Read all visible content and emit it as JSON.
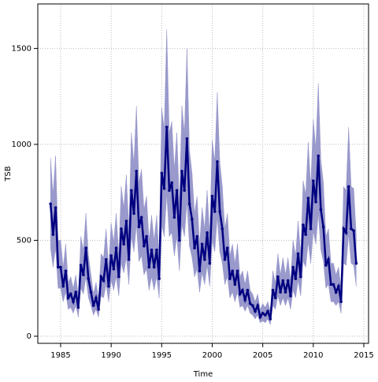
{
  "chart_data": {
    "type": "line",
    "x_label": "Time",
    "y_label": "TSB",
    "x": [
      1984,
      1984.25,
      1984.5,
      1984.75,
      1985,
      1985.25,
      1985.5,
      1985.75,
      1986,
      1986.25,
      1986.5,
      1986.75,
      1987,
      1987.25,
      1987.5,
      1987.75,
      1988,
      1988.25,
      1988.5,
      1988.75,
      1989,
      1989.25,
      1989.5,
      1989.75,
      1990,
      1990.25,
      1990.5,
      1990.75,
      1991,
      1991.25,
      1991.5,
      1991.75,
      1992,
      1992.25,
      1992.5,
      1992.75,
      1993,
      1993.25,
      1993.5,
      1993.75,
      1994,
      1994.25,
      1994.5,
      1994.75,
      1995,
      1995.25,
      1995.5,
      1995.75,
      1996,
      1996.25,
      1996.5,
      1996.75,
      1997,
      1997.25,
      1997.5,
      1997.75,
      1998,
      1998.25,
      1998.5,
      1998.75,
      1999,
      1999.25,
      1999.5,
      1999.75,
      2000,
      2000.25,
      2000.5,
      2000.75,
      2001,
      2001.25,
      2001.5,
      2001.75,
      2002,
      2002.25,
      2002.5,
      2002.75,
      2003,
      2003.25,
      2003.5,
      2003.75,
      2004,
      2004.25,
      2004.5,
      2004.75,
      2005,
      2005.25,
      2005.5,
      2005.75,
      2006,
      2006.25,
      2006.5,
      2006.75,
      2007,
      2007.25,
      2007.5,
      2007.75,
      2008,
      2008.25,
      2008.5,
      2008.75,
      2009,
      2009.25,
      2009.5,
      2009.75,
      2010,
      2010.25,
      2010.5,
      2010.75,
      2011,
      2011.25,
      2011.5,
      2011.75,
      2012,
      2012.25,
      2012.5,
      2012.75,
      2013,
      2013.25,
      2013.5,
      2013.75,
      2014,
      2014.25
    ],
    "series": [
      {
        "color": "#000080",
        "values": [
          690,
          530,
          670,
          360,
          360,
          260,
          340,
          200,
          220,
          180,
          230,
          150,
          370,
          320,
          460,
          300,
          230,
          160,
          200,
          140,
          310,
          290,
          400,
          260,
          420,
          350,
          460,
          310,
          560,
          480,
          600,
          400,
          760,
          640,
          860,
          570,
          620,
          470,
          520,
          360,
          450,
          360,
          450,
          300,
          850,
          770,
          1090,
          760,
          800,
          620,
          760,
          500,
          860,
          760,
          1030,
          690,
          610,
          460,
          520,
          340,
          480,
          400,
          540,
          380,
          730,
          650,
          910,
          650,
          560,
          400,
          460,
          300,
          340,
          270,
          340,
          220,
          240,
          190,
          240,
          170,
          160,
          130,
          160,
          100,
          120,
          110,
          130,
          90,
          240,
          200,
          310,
          230,
          290,
          230,
          290,
          210,
          360,
          300,
          430,
          310,
          580,
          530,
          720,
          560,
          810,
          700,
          940,
          660,
          570,
          370,
          400,
          270,
          270,
          230,
          260,
          180,
          560,
          540,
          780,
          560,
          550,
          380
        ]
      }
    ],
    "band": {
      "color": "#9999cc",
      "lower": [
        460,
        360,
        460,
        250,
        250,
        180,
        230,
        140,
        150,
        120,
        160,
        100,
        250,
        220,
        310,
        200,
        160,
        110,
        140,
        100,
        210,
        200,
        270,
        180,
        290,
        240,
        310,
        210,
        380,
        330,
        410,
        270,
        520,
        440,
        580,
        390,
        420,
        320,
        350,
        240,
        310,
        240,
        310,
        200,
        580,
        520,
        740,
        520,
        540,
        420,
        520,
        340,
        580,
        520,
        700,
        470,
        410,
        310,
        350,
        230,
        330,
        270,
        370,
        260,
        500,
        440,
        620,
        440,
        380,
        270,
        310,
        200,
        230,
        180,
        230,
        150,
        160,
        130,
        160,
        120,
        110,
        90,
        110,
        70,
        80,
        70,
        90,
        60,
        160,
        140,
        210,
        160,
        200,
        160,
        200,
        140,
        240,
        200,
        290,
        210,
        390,
        360,
        490,
        380,
        550,
        480,
        640,
        450,
        390,
        250,
        270,
        180,
        180,
        160,
        180,
        120,
        380,
        370,
        530,
        380,
        370,
        260
      ],
      "upper": [
        930,
        740,
        940,
        500,
        500,
        360,
        480,
        280,
        310,
        250,
        320,
        210,
        520,
        450,
        640,
        420,
        320,
        220,
        280,
        200,
        430,
        410,
        560,
        360,
        590,
        490,
        640,
        430,
        780,
        670,
        840,
        560,
        1060,
        900,
        1200,
        800,
        870,
        660,
        730,
        500,
        630,
        500,
        630,
        420,
        1190,
        1080,
        1600,
        1060,
        1120,
        870,
        1060,
        700,
        1200,
        1060,
        1500,
        970,
        850,
        640,
        730,
        480,
        670,
        560,
        760,
        530,
        1020,
        910,
        1270,
        910,
        780,
        560,
        640,
        420,
        480,
        380,
        480,
        310,
        340,
        270,
        340,
        240,
        220,
        180,
        220,
        140,
        170,
        150,
        180,
        130,
        340,
        280,
        430,
        320,
        410,
        320,
        410,
        290,
        500,
        420,
        600,
        430,
        810,
        740,
        1010,
        780,
        1130,
        980,
        1320,
        920,
        800,
        520,
        560,
        380,
        380,
        320,
        360,
        250,
        780,
        760,
        1090,
        780,
        770,
        530
      ]
    },
    "xlim": [
      1982.74,
      2015.47
    ],
    "ylim": [
      -37,
      1732
    ],
    "xticks": [
      1985,
      1990,
      1995,
      2000,
      2005,
      2010,
      2015
    ],
    "yticks": [
      0,
      500,
      1000,
      1500
    ],
    "grid": true
  }
}
